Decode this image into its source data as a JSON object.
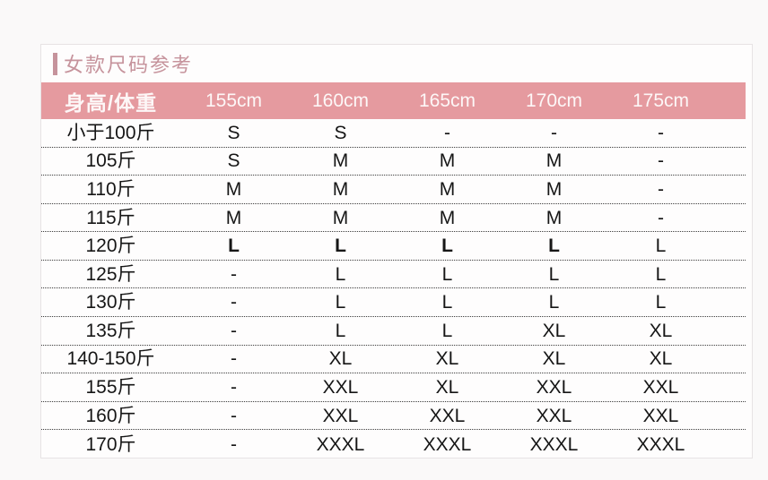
{
  "theme": {
    "page_bg": "#faf9f9",
    "card_bg": "#fefdfd",
    "card_border": "#e7e3e4",
    "title_color": "#c6939c",
    "header_bg": "#e59a9f",
    "header_text": "#fdf7f7",
    "body_text": "#161616",
    "divider_color": "#3c3c3c"
  },
  "section": {
    "title": "女款尺码参考"
  },
  "chart_data": {
    "type": "table",
    "title": "女款尺码参考",
    "headers": [
      "身高/体重",
      "155cm",
      "160cm",
      "165cm",
      "170cm",
      "175cm"
    ],
    "rows": [
      [
        "小于100斤",
        "S",
        "S",
        "-",
        "-",
        "-"
      ],
      [
        "105斤",
        "S",
        "M",
        "M",
        "M",
        "-"
      ],
      [
        "110斤",
        "M",
        "M",
        "M",
        "M",
        "-"
      ],
      [
        "115斤",
        "M",
        "M",
        "M",
        "M",
        "-"
      ],
      [
        "120斤",
        "L",
        "L",
        "L",
        "L",
        "L"
      ],
      [
        "125斤",
        "-",
        "L",
        "L",
        "L",
        "L"
      ],
      [
        "130斤",
        "-",
        "L",
        "L",
        "L",
        "L"
      ],
      [
        "135斤",
        "-",
        "L",
        "L",
        "XL",
        "XL"
      ],
      [
        "140-150斤",
        "-",
        "XL",
        "XL",
        "XL",
        "XL"
      ],
      [
        "155斤",
        "-",
        "XXL",
        "XL",
        "XXL",
        "XXL"
      ],
      [
        "160斤",
        "-",
        "XXL",
        "XXL",
        "XXL",
        "XXL"
      ],
      [
        "170斤",
        "-",
        "XXXL",
        "XXXL",
        "XXXL",
        "XXXL"
      ]
    ],
    "bold_cells": {
      "4": [
        1,
        2,
        3,
        4
      ]
    },
    "layout": {
      "grid": "dotted-row-dividers",
      "header_style": "pink-band"
    }
  }
}
